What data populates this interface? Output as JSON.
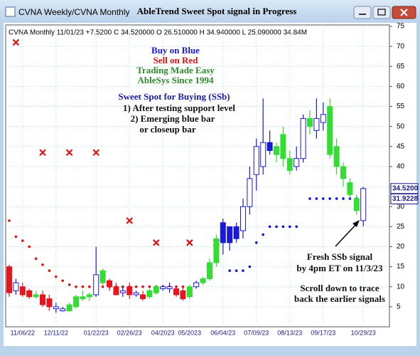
{
  "window": {
    "title": "CVNA Weekly/CVNA Monthly"
  },
  "chart_data": {
    "type": "candlestick",
    "title": "AbleTrend Sweet Spot signal in Progress",
    "header": "CVNA  Monthly 11/01/23 +7.5200 C 34.520000 O 26.510000 H 34.940000 L 25.090000 34.84M",
    "categories": [
      null,
      null,
      "11/06/22",
      null,
      null,
      null,
      null,
      "12/11/22",
      null,
      null,
      null,
      null,
      null,
      "01/22/23",
      null,
      null,
      null,
      null,
      "02/26/23",
      null,
      null,
      null,
      null,
      "04/2023",
      null,
      null,
      null,
      "05/2023",
      null,
      null,
      null,
      null,
      "06/04/23",
      null,
      null,
      null,
      null,
      "07/09/23",
      null,
      null,
      null,
      null,
      "08/13/23",
      null,
      null,
      null,
      null,
      "09/17/23",
      null,
      null,
      null,
      null,
      null,
      "10/29/23"
    ],
    "open": [
      15,
      11,
      10,
      9,
      7.5,
      8,
      7,
      5,
      4.5,
      4,
      5,
      7,
      7.5,
      8,
      11,
      11.5,
      10,
      8.5,
      10,
      8,
      8,
      7.5,
      8.5,
      9.5,
      10,
      9.5,
      9,
      7.5,
      10,
      11,
      12,
      16,
      21,
      25,
      22,
      24,
      30,
      38,
      40,
      46,
      45,
      48,
      42,
      40,
      42,
      52,
      49,
      51,
      55,
      45,
      40,
      36,
      32,
      26.51
    ],
    "high": [
      15.5,
      12,
      11,
      9.5,
      9,
      9,
      8,
      6,
      5,
      6,
      8,
      9,
      8.5,
      20,
      14.5,
      12,
      11,
      10,
      11,
      9,
      9,
      9.5,
      10.5,
      10.5,
      11,
      10,
      10,
      10.5,
      11.5,
      12.5,
      17,
      23,
      27,
      25,
      26,
      32,
      40,
      47,
      57,
      49,
      46,
      50,
      44,
      45,
      53,
      54,
      57,
      56,
      57,
      47,
      41,
      37,
      33,
      34.94
    ],
    "low": [
      7.5,
      8,
      7.5,
      7,
      7,
      5,
      4,
      3.5,
      3.8,
      3.8,
      4.5,
      6.5,
      6.5,
      7.5,
      10.5,
      9,
      8,
      7.5,
      7,
      7.5,
      6.5,
      7,
      8,
      9,
      8.5,
      7.5,
      6.5,
      7,
      9.5,
      10.5,
      11.5,
      15,
      18,
      19,
      21,
      22,
      28,
      34,
      38,
      43,
      41,
      40,
      38,
      39,
      41,
      48,
      47,
      49,
      42,
      38,
      35,
      32,
      28,
      25.09
    ],
    "close": [
      8.5,
      9,
      8,
      7.5,
      8,
      5.5,
      5,
      4.5,
      4,
      5.5,
      7.5,
      7.5,
      8,
      13,
      14,
      10,
      8,
      9,
      8,
      8.5,
      7,
      9,
      10,
      10,
      9.5,
      8,
      7,
      10,
      11,
      12,
      16,
      22,
      26,
      21,
      25,
      30,
      37,
      45,
      46,
      44,
      43,
      42,
      39,
      42,
      52,
      50,
      52,
      53,
      43,
      40,
      37,
      33,
      29,
      34.52
    ],
    "colors": [
      "#e8141e",
      "#ffffff",
      "#e8141e",
      "#e8141e",
      "#33dd33",
      "#e8141e",
      "#e8141e",
      "#ffffff",
      "#ffffff",
      "#33dd33",
      "#33dd33",
      "#33dd33",
      "#33dd33",
      "#ffffff",
      "#33dd33",
      "#e8141e",
      "#e8141e",
      "#ffffff",
      "#e8141e",
      "#ffffff",
      "#e8141e",
      "#33dd33",
      "#33dd33",
      "#ffffff",
      "#ffffff",
      "#e8141e",
      "#e8141e",
      "#33dd33",
      "#ffffff",
      "#33dd33",
      "#33dd33",
      "#33dd33",
      "#1a1ad6",
      "#1a1ad6",
      "#1a1ad6",
      "#ffffff",
      "#ffffff",
      "#ffffff",
      "#ffffff",
      "#1a1ad6",
      "#33dd33",
      "#33dd33",
      "#33dd33",
      "#ffffff",
      "#ffffff",
      "#33dd33",
      "#ffffff",
      "#ffffff",
      "#33dd33",
      "#33dd33",
      "#33dd33",
      "#33dd33",
      "#33dd33",
      "#ffffff"
    ],
    "outline": "#1a1ad6",
    "stops": [
      {
        "color": "#e01010",
        "values": [
          26.5,
          22.5,
          21.5,
          20,
          17,
          15.5,
          14,
          12.5,
          11.5,
          10.5,
          10,
          10,
          10,
          10,
          10,
          10,
          10,
          10,
          10,
          10,
          10,
          10,
          10,
          10,
          10,
          10,
          10,
          null,
          null,
          null,
          null,
          null,
          null,
          null,
          null,
          null,
          null,
          null,
          null,
          null,
          null,
          null,
          null,
          null,
          null,
          null,
          null,
          null,
          null,
          null,
          null,
          null,
          null,
          null
        ]
      },
      {
        "color": "#1010e0",
        "values": [
          null,
          null,
          null,
          null,
          null,
          null,
          null,
          null,
          null,
          null,
          null,
          null,
          null,
          null,
          null,
          null,
          null,
          null,
          null,
          null,
          null,
          null,
          null,
          null,
          null,
          null,
          null,
          null,
          null,
          null,
          null,
          null,
          null,
          14,
          14,
          14,
          15,
          21,
          23,
          25,
          25,
          25,
          25,
          25,
          null,
          32,
          32,
          32,
          32,
          32,
          32,
          32,
          32,
          32
        ]
      }
    ],
    "sell_marks": {
      "color": "#e01010",
      "values": [
        null,
        71,
        null,
        null,
        null,
        43.5,
        null,
        null,
        null,
        43.5,
        null,
        null,
        null,
        43.5,
        null,
        null,
        null,
        null,
        26.5,
        null,
        null,
        null,
        21,
        null,
        null,
        null,
        null,
        21,
        null,
        null,
        null,
        21,
        null,
        null,
        null,
        null,
        null,
        null,
        null,
        null,
        null,
        null,
        null,
        null,
        null,
        null,
        null,
        null,
        null,
        null,
        null,
        null,
        null,
        null
      ]
    },
    "ylim": [
      0,
      75
    ],
    "yticks": [
      5,
      10,
      15,
      20,
      25,
      30,
      35,
      40,
      45,
      50,
      55,
      60,
      65,
      70,
      75
    ],
    "grid": true,
    "price_tags": [
      {
        "value": 34.52,
        "label": "34.5200"
      },
      {
        "value": 31.9228,
        "label": "31.9228"
      }
    ],
    "annotations": [
      {
        "text": "Buy on Blue",
        "color": "#1a1ad6"
      },
      {
        "text": "Sell on Red",
        "color": "#e01010"
      },
      {
        "text": "Trading Made Easy",
        "color": "#2a8a2a"
      },
      {
        "text": "AbleSys Since 1994",
        "color": "#2a8a2a"
      },
      {
        "text": "Sweet Spot for Buying (SSb)",
        "color": "#1a1aa6"
      },
      {
        "text": "1) After testing support level",
        "color": "#111111"
      },
      {
        "text": "2) Emerging blue bar",
        "color": "#111111"
      },
      {
        "text": "or closeup bar",
        "color": "#111111"
      },
      {
        "text": "Fresh SSb signal",
        "color": "#111111"
      },
      {
        "text": "by 4pm ET on 11/3/23",
        "color": "#111111"
      },
      {
        "text": "Scroll down to trace",
        "color": "#111111"
      },
      {
        "text": "back the earlier signals",
        "color": "#111111"
      }
    ]
  }
}
